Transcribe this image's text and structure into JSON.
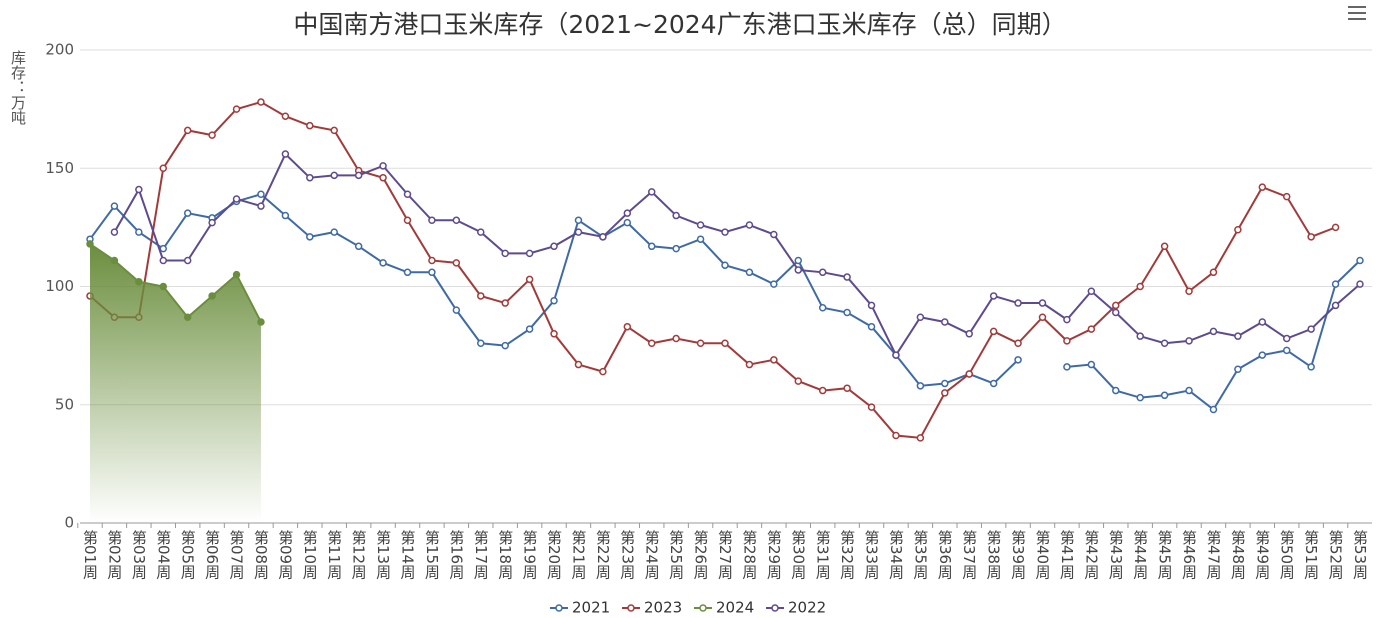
{
  "chart_data": {
    "type": "line",
    "title": "中国南方港口玉米库存（2021~2024广东港口玉米库存（总）同期）",
    "y_label": "库存：万吨",
    "categories": [
      "第01周",
      "第02周",
      "第03周",
      "第04周",
      "第05周",
      "第06周",
      "第07周",
      "第08周",
      "第09周",
      "第10周",
      "第11周",
      "第12周",
      "第13周",
      "第14周",
      "第15周",
      "第16周",
      "第17周",
      "第18周",
      "第19周",
      "第20周",
      "第21周",
      "第22周",
      "第23周",
      "第24周",
      "第25周",
      "第26周",
      "第27周",
      "第28周",
      "第29周",
      "第30周",
      "第31周",
      "第32周",
      "第33周",
      "第34周",
      "第35周",
      "第36周",
      "第37周",
      "第38周",
      "第39周",
      "第40周",
      "第41周",
      "第42周",
      "第43周",
      "第44周",
      "第45周",
      "第46周",
      "第47周",
      "第48周",
      "第49周",
      "第50周",
      "第51周",
      "第52周",
      "第53周"
    ],
    "series": [
      {
        "name": "2021",
        "color": "#3e6aa6",
        "values": [
          120,
          134,
          123,
          116,
          131,
          129,
          136,
          139,
          130,
          121,
          123,
          117,
          110,
          106,
          106,
          90,
          76,
          75,
          82,
          94,
          128,
          121,
          127,
          117,
          116,
          120,
          109,
          106,
          101,
          111,
          91,
          89,
          83,
          71,
          58,
          59,
          63,
          59,
          69,
          null,
          66,
          67,
          56,
          53,
          54,
          56,
          48,
          65,
          71,
          73,
          66,
          101,
          111
        ]
      },
      {
        "name": "2023",
        "color": "#a33a3a",
        "values": [
          96,
          87,
          87,
          150,
          166,
          164,
          175,
          178,
          172,
          168,
          166,
          149,
          146,
          128,
          111,
          110,
          96,
          93,
          103,
          80,
          67,
          64,
          83,
          76,
          78,
          76,
          76,
          67,
          69,
          60,
          56,
          57,
          49,
          37,
          36,
          55,
          63,
          81,
          76,
          87,
          77,
          82,
          92,
          100,
          117,
          98,
          106,
          124,
          142,
          138,
          121,
          125,
          null
        ]
      },
      {
        "name": "2024",
        "color": "#6b8e3e",
        "area": true,
        "values": [
          118,
          111,
          102,
          100,
          87,
          96,
          105,
          85,
          null,
          null,
          null,
          null,
          null,
          null,
          null,
          null,
          null,
          null,
          null,
          null,
          null,
          null,
          null,
          null,
          null,
          null,
          null,
          null,
          null,
          null,
          null,
          null,
          null,
          null,
          null,
          null,
          null,
          null,
          null,
          null,
          null,
          null,
          null,
          null,
          null,
          null,
          null,
          null,
          null,
          null,
          null,
          null,
          null
        ]
      },
      {
        "name": "2022",
        "color": "#5e4a8e",
        "values": [
          null,
          123,
          141,
          111,
          111,
          127,
          137,
          134,
          156,
          146,
          147,
          147,
          151,
          139,
          128,
          128,
          123,
          114,
          114,
          117,
          123,
          121,
          131,
          140,
          130,
          126,
          123,
          126,
          122,
          107,
          106,
          104,
          92,
          71,
          87,
          85,
          80,
          96,
          93,
          93,
          86,
          98,
          89,
          79,
          76,
          77,
          81,
          79,
          85,
          78,
          82,
          92,
          101
        ]
      }
    ],
    "ylim": [
      0,
      200
    ],
    "yticks": [
      0,
      50,
      100,
      150,
      200
    ],
    "grid": true
  }
}
